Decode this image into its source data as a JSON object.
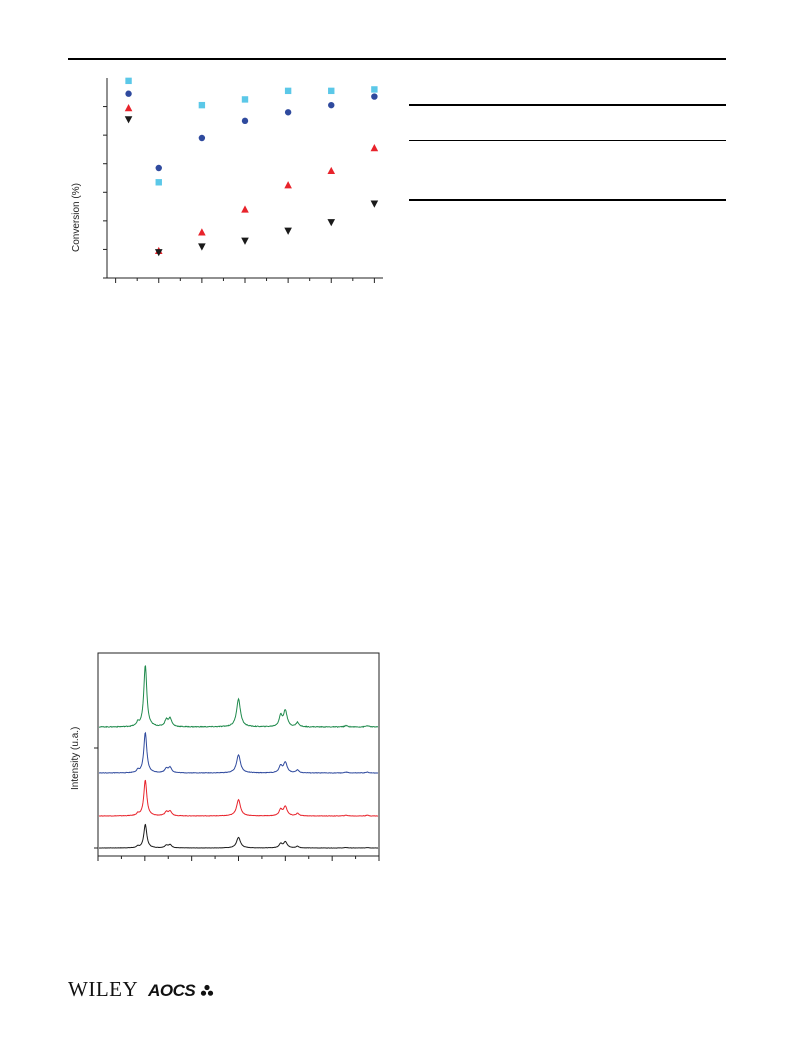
{
  "footer": {
    "publisher_logo": "WILEY",
    "society_logo": "AOCS"
  },
  "colors": {
    "light_blue": "#5bc8e8",
    "dark_blue": "#2f4a9e",
    "red": "#e8232b",
    "black": "#1a1a1a",
    "green": "#1f8a4c"
  },
  "chart_data": [
    {
      "type": "scatter",
      "title": "",
      "xlabel": "",
      "ylabel": "Conversion (%)",
      "xlim": [
        -0.2,
        6.2
      ],
      "ylim": [
        0,
        7
      ],
      "x_ticks": [
        0,
        0.5,
        1,
        1.5,
        2,
        2.5,
        3,
        3.5,
        4,
        4.5,
        5,
        5.5,
        6
      ],
      "y_ticks": [
        0,
        1,
        2,
        3,
        4,
        5,
        6
      ],
      "series": [
        {
          "marker": "square",
          "color": "#5bc8e8",
          "x": [
            0.3,
            1,
            2,
            3,
            4,
            5,
            6
          ],
          "y": [
            6.9,
            3.35,
            6.05,
            6.25,
            6.55,
            6.55,
            6.6
          ]
        },
        {
          "marker": "circle",
          "color": "#2f4a9e",
          "x": [
            0.3,
            1,
            2,
            3,
            4,
            5,
            6
          ],
          "y": [
            6.45,
            3.85,
            4.9,
            5.5,
            5.8,
            6.05,
            6.35
          ]
        },
        {
          "marker": "triangle-up",
          "color": "#e8232b",
          "x": [
            0.3,
            1,
            2,
            3,
            4,
            5,
            6
          ],
          "y": [
            5.95,
            0.95,
            1.6,
            2.4,
            3.25,
            3.75,
            4.55
          ]
        },
        {
          "marker": "triangle-down",
          "color": "#1a1a1a",
          "x": [
            0.3,
            1,
            2,
            3,
            4,
            5,
            6
          ],
          "y": [
            5.55,
            0.9,
            1.1,
            1.3,
            1.65,
            1.95,
            2.6
          ]
        }
      ]
    },
    {
      "type": "line",
      "title": "",
      "xlabel": "",
      "ylabel": "Intensity (u.a.)",
      "xlim": [
        0,
        60
      ],
      "peaks": [
        {
          "pos": 10.1,
          "height": 1.0,
          "width": 0.38
        },
        {
          "pos": 8.5,
          "height": 0.06,
          "width": 0.3
        },
        {
          "pos": 14.6,
          "height": 0.11,
          "width": 0.4
        },
        {
          "pos": 15.4,
          "height": 0.13,
          "width": 0.4
        },
        {
          "pos": 30.0,
          "height": 0.45,
          "width": 0.5
        },
        {
          "pos": 39.0,
          "height": 0.17,
          "width": 0.4
        },
        {
          "pos": 40.0,
          "height": 0.26,
          "width": 0.45
        },
        {
          "pos": 42.6,
          "height": 0.07,
          "width": 0.35
        },
        {
          "pos": 53.0,
          "height": 0.02,
          "width": 0.4
        },
        {
          "pos": 57.5,
          "height": 0.02,
          "width": 0.4
        }
      ],
      "series": [
        {
          "color": "#1a1a1a",
          "scale": 0.38
        },
        {
          "color": "#e8232b",
          "scale": 0.58
        },
        {
          "color": "#2f4a9e",
          "scale": 0.65
        },
        {
          "color": "#1f8a4c",
          "scale": 1.0
        }
      ]
    }
  ]
}
